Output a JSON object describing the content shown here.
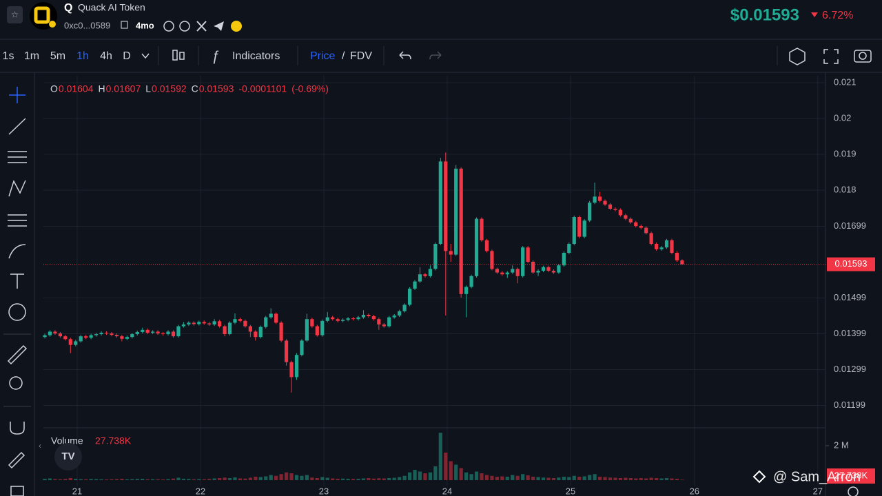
{
  "header": {
    "symbol": "Q",
    "name": "Quack AI Token",
    "address": "0xc0...0589",
    "age": "4mo",
    "price": "$0.01593",
    "change": "6.72%"
  },
  "toolbar": {
    "intervals": [
      "1s",
      "1m",
      "5m",
      "1h",
      "4h",
      "D"
    ],
    "indicators": "Indicators",
    "price": "Price",
    "separator": "/",
    "fdv": "FDV"
  },
  "chart_data": {
    "type": "candlestick",
    "ohlc_legend": [
      {
        "key": "O",
        "value": 0.01604
      },
      {
        "key": "H",
        "value": 0.01607
      },
      {
        "key": "L",
        "value": 0.01592
      },
      {
        "key": "C",
        "value": 0.01593
      }
    ],
    "change": -0.0001101,
    "change_pct": "(-0.69%)",
    "up_color": "#22ab94",
    "down_color": "#f23645",
    "open": [
      0.0139,
      0.01395,
      0.01405,
      0.014,
      0.01392,
      0.01384,
      0.01368,
      0.01378,
      0.01392,
      0.01388,
      0.01395,
      0.01398,
      0.01402,
      0.014,
      0.01396,
      0.01392,
      0.01385,
      0.0139,
      0.01398,
      0.01404,
      0.0141,
      0.01402,
      0.01405,
      0.014,
      0.01398,
      0.01405,
      0.01392,
      0.0142,
      0.01425,
      0.0143,
      0.01426,
      0.01432,
      0.01428,
      0.01425,
      0.01434,
      0.0142,
      0.01398,
      0.0143,
      0.0144,
      0.01435,
      0.0142,
      0.01405,
      0.0139,
      0.01418,
      0.01445,
      0.01455,
      0.0143,
      0.0138,
      0.0132,
      0.01278,
      0.0134,
      0.0138,
      0.0144,
      0.0142,
      0.01395,
      0.01435,
      0.01445,
      0.0144,
      0.01435,
      0.01438,
      0.01442,
      0.0144,
      0.01445,
      0.01452,
      0.01448,
      0.0144,
      0.01425,
      0.0142,
      0.01445,
      0.0145,
      0.01462,
      0.0148,
      0.01525,
      0.01545,
      0.01565,
      0.0156,
      0.0158,
      0.0165,
      0.0188,
      0.0163,
      0.0162,
      0.0186,
      0.0151,
      0.0153,
      0.0156,
      0.0172,
      0.0166,
      0.0163,
      0.0158,
      0.0157,
      0.01565,
      0.0157,
      0.0158,
      0.0156,
      0.0164,
      0.016,
      0.0157,
      0.01575,
      0.01585,
      0.01575,
      0.0157,
      0.0159,
      0.01625,
      0.0165,
      0.01725,
      0.0167,
      0.01715,
      0.01765,
      0.01782,
      0.0177,
      0.0176,
      0.01748,
      0.01745,
      0.0173,
      0.0172,
      0.0171,
      0.017,
      0.01695,
      0.0168,
      0.0165,
      0.01635,
      0.0164,
      0.0166,
      0.01625,
      0.01604
    ],
    "high": [
      0.01399,
      0.01409,
      0.01409,
      0.01404,
      0.01396,
      0.01388,
      0.01382,
      0.01396,
      0.01396,
      0.01399,
      0.01402,
      0.01406,
      0.01406,
      0.01404,
      0.014,
      0.01396,
      0.01394,
      0.01402,
      0.01408,
      0.01416,
      0.01414,
      0.01409,
      0.01409,
      0.01404,
      0.01409,
      0.01409,
      0.01424,
      0.01432,
      0.01434,
      0.01434,
      0.01436,
      0.01436,
      0.01432,
      0.0144,
      0.01438,
      0.01424,
      0.01434,
      0.01456,
      0.01444,
      0.01439,
      0.01424,
      0.01409,
      0.01422,
      0.01449,
      0.0147,
      0.01459,
      0.01434,
      0.01384,
      0.01324,
      0.01345,
      0.01384,
      0.01455,
      0.01444,
      0.01424,
      0.01439,
      0.0146,
      0.01449,
      0.01444,
      0.01442,
      0.01446,
      0.01446,
      0.01449,
      0.01465,
      0.01456,
      0.01452,
      0.01444,
      0.01429,
      0.01449,
      0.01454,
      0.01466,
      0.01484,
      0.01529,
      0.01549,
      0.01585,
      0.01569,
      0.0159,
      0.01654,
      0.0189,
      0.01905,
      0.0165,
      0.0187,
      0.01864,
      0.01534,
      0.01564,
      0.01724,
      0.01724,
      0.01664,
      0.01634,
      0.01584,
      0.01574,
      0.01574,
      0.0159,
      0.01584,
      0.01644,
      0.01644,
      0.01604,
      0.01579,
      0.01589,
      0.01589,
      0.01579,
      0.01594,
      0.01629,
      0.01654,
      0.01729,
      0.01729,
      0.01719,
      0.0177,
      0.01821,
      0.01795,
      0.01774,
      0.01764,
      0.01752,
      0.01749,
      0.01734,
      0.01724,
      0.01714,
      0.01704,
      0.01699,
      0.01684,
      0.01654,
      0.01644,
      0.01664,
      0.01664,
      0.01629,
      0.01607
    ],
    "low": [
      0.01386,
      0.01391,
      0.01396,
      0.01388,
      0.0138,
      0.01345,
      0.01364,
      0.01374,
      0.01384,
      0.01384,
      0.01391,
      0.01394,
      0.01396,
      0.01392,
      0.01388,
      0.01378,
      0.01381,
      0.01386,
      0.01394,
      0.014,
      0.01398,
      0.01398,
      0.01396,
      0.01394,
      0.01394,
      0.01388,
      0.01388,
      0.01416,
      0.01421,
      0.01422,
      0.01422,
      0.01424,
      0.01421,
      0.01421,
      0.01416,
      0.01392,
      0.01394,
      0.01426,
      0.01431,
      0.01416,
      0.0139,
      0.0138,
      0.01386,
      0.01414,
      0.01441,
      0.01426,
      0.01376,
      0.0131,
      0.01235,
      0.0127,
      0.01336,
      0.01376,
      0.01416,
      0.01391,
      0.01391,
      0.01431,
      0.01436,
      0.01431,
      0.01431,
      0.01434,
      0.01436,
      0.01436,
      0.01441,
      0.01444,
      0.01436,
      0.0141,
      0.01416,
      0.01416,
      0.01441,
      0.01446,
      0.01458,
      0.01476,
      0.01521,
      0.01541,
      0.01556,
      0.01556,
      0.01576,
      0.01646,
      0.0145,
      0.016,
      0.01616,
      0.015,
      0.01445,
      0.01526,
      0.01556,
      0.01656,
      0.01626,
      0.01576,
      0.01566,
      0.01561,
      0.01555,
      0.01566,
      0.0154,
      0.01556,
      0.01596,
      0.01566,
      0.0156,
      0.01571,
      0.01571,
      0.01566,
      0.01566,
      0.01586,
      0.01621,
      0.01646,
      0.01666,
      0.01666,
      0.01711,
      0.01761,
      0.01766,
      0.01756,
      0.01744,
      0.01741,
      0.01726,
      0.01716,
      0.01706,
      0.01696,
      0.01691,
      0.01676,
      0.01646,
      0.01631,
      0.01631,
      0.01636,
      0.01621,
      0.016,
      0.01592
    ],
    "close": [
      0.01395,
      0.01405,
      0.014,
      0.01392,
      0.01384,
      0.01368,
      0.01378,
      0.01392,
      0.01388,
      0.01395,
      0.01398,
      0.01402,
      0.014,
      0.01396,
      0.01392,
      0.01385,
      0.0139,
      0.01398,
      0.01404,
      0.0141,
      0.01402,
      0.01405,
      0.014,
      0.01398,
      0.01405,
      0.01392,
      0.0142,
      0.01425,
      0.0143,
      0.01426,
      0.01432,
      0.01428,
      0.01425,
      0.01434,
      0.0142,
      0.01398,
      0.0143,
      0.0144,
      0.01435,
      0.0142,
      0.01405,
      0.0139,
      0.01418,
      0.01445,
      0.01455,
      0.0143,
      0.0138,
      0.0132,
      0.01278,
      0.0134,
      0.0138,
      0.0144,
      0.0142,
      0.01395,
      0.01435,
      0.01445,
      0.0144,
      0.01435,
      0.01438,
      0.01442,
      0.0144,
      0.01445,
      0.01452,
      0.01448,
      0.0144,
      0.01425,
      0.0142,
      0.01445,
      0.0145,
      0.01462,
      0.0148,
      0.01525,
      0.01545,
      0.01565,
      0.0156,
      0.0158,
      0.0165,
      0.0188,
      0.0163,
      0.0162,
      0.0186,
      0.0151,
      0.0153,
      0.0156,
      0.0172,
      0.0166,
      0.0163,
      0.0158,
      0.0157,
      0.01565,
      0.0157,
      0.0158,
      0.0156,
      0.0164,
      0.016,
      0.0157,
      0.01575,
      0.01585,
      0.01575,
      0.0157,
      0.0159,
      0.01625,
      0.0165,
      0.01725,
      0.0167,
      0.01715,
      0.01765,
      0.01782,
      0.0177,
      0.0176,
      0.01748,
      0.01745,
      0.0173,
      0.0172,
      0.0171,
      0.017,
      0.01695,
      0.0168,
      0.0165,
      0.01635,
      0.0164,
      0.0166,
      0.01625,
      0.01604,
      0.01593
    ],
    "volume": [
      0.08,
      0.1,
      0.06,
      0.05,
      0.07,
      0.12,
      0.08,
      0.06,
      0.05,
      0.07,
      0.06,
      0.05,
      0.04,
      0.05,
      0.06,
      0.08,
      0.05,
      0.06,
      0.07,
      0.08,
      0.05,
      0.06,
      0.05,
      0.04,
      0.06,
      0.09,
      0.14,
      0.08,
      0.07,
      0.05,
      0.06,
      0.05,
      0.07,
      0.1,
      0.12,
      0.15,
      0.12,
      0.16,
      0.1,
      0.09,
      0.14,
      0.2,
      0.18,
      0.22,
      0.3,
      0.25,
      0.35,
      0.45,
      0.4,
      0.3,
      0.25,
      0.3,
      0.15,
      0.12,
      0.18,
      0.14,
      0.1,
      0.08,
      0.09,
      0.08,
      0.07,
      0.08,
      0.1,
      0.12,
      0.09,
      0.11,
      0.1,
      0.12,
      0.14,
      0.18,
      0.25,
      0.45,
      0.6,
      0.5,
      0.4,
      0.45,
      0.8,
      2.75,
      1.6,
      1.1,
      0.9,
      0.7,
      0.45,
      0.35,
      0.5,
      0.4,
      0.3,
      0.25,
      0.2,
      0.22,
      0.2,
      0.3,
      0.25,
      0.35,
      0.28,
      0.2,
      0.18,
      0.15,
      0.14,
      0.12,
      0.15,
      0.2,
      0.18,
      0.25,
      0.2,
      0.22,
      0.3,
      0.35,
      0.2,
      0.18,
      0.15,
      0.14,
      0.12,
      0.14,
      0.12,
      0.1,
      0.12,
      0.1,
      0.14,
      0.12,
      0.1,
      0.12,
      0.1,
      0.08,
      0.027738
    ],
    "volume_title": "Volume",
    "volume_label": "27.738K",
    "ylim": [
      0.011385,
      0.021192
    ],
    "yticks": [
      0.021,
      0.02,
      0.019,
      0.018,
      0.01699,
      0.01499,
      0.01399,
      0.01299,
      0.01199
    ],
    "vlim": [
      0,
      2.88
    ],
    "vticks": [
      {
        "value": 2,
        "label": "2 M"
      }
    ],
    "xlim": [
      -0.27,
      151.9
    ],
    "xticks": [
      {
        "value": 6.3,
        "label": "21"
      },
      {
        "value": 30.3,
        "label": "22"
      },
      {
        "value": 54.3,
        "label": "23"
      },
      {
        "value": 78.3,
        "label": "24"
      },
      {
        "value": 102.3,
        "label": "25"
      },
      {
        "value": 126.4,
        "label": "26"
      },
      {
        "value": 150.4,
        "label": "27"
      }
    ],
    "grid": true,
    "last_price": 0.01593
  },
  "watermark": "@ Sam_Arron"
}
